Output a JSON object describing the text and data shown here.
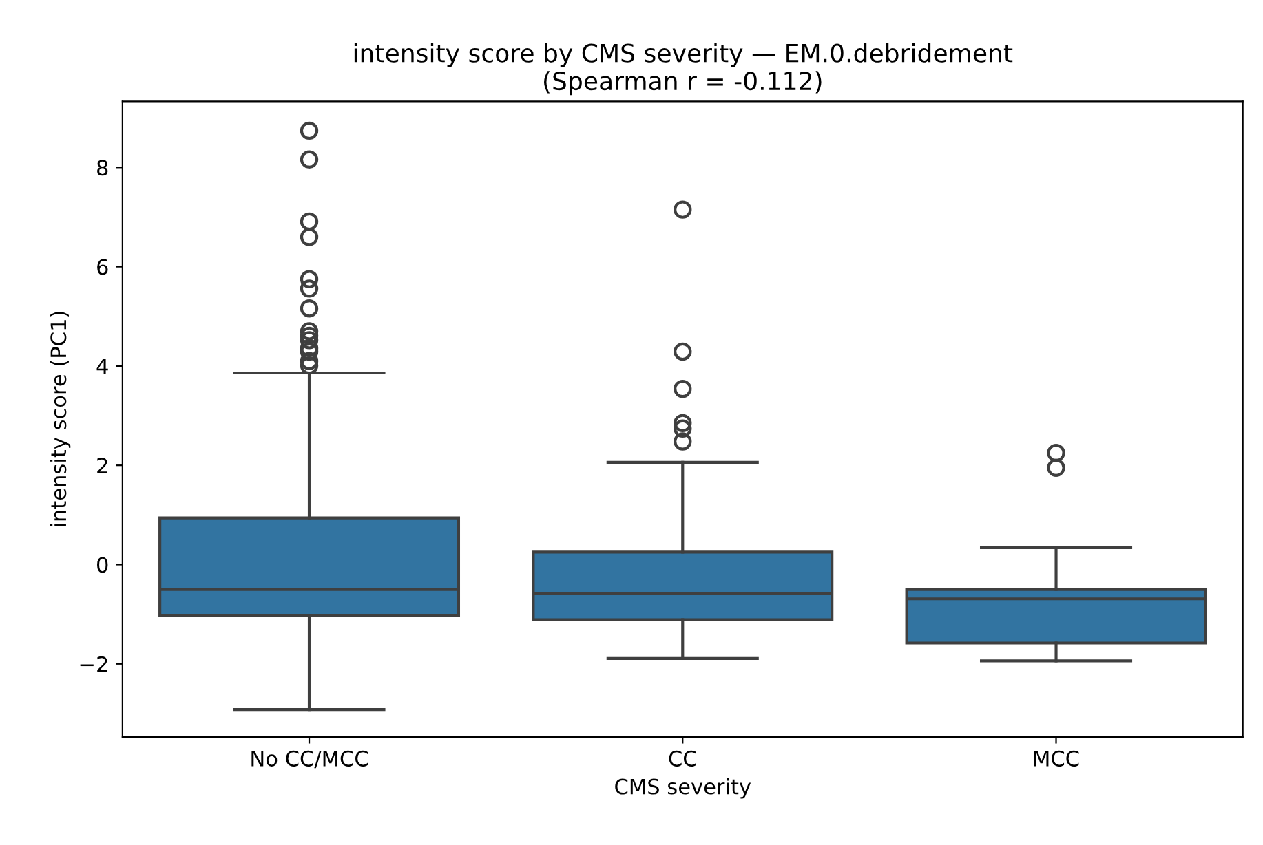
{
  "chart_data": {
    "type": "box",
    "title": "intensity score by CMS severity — EM.0.debridement\n(Spearman r = -0.112)",
    "xlabel": "CMS severity",
    "ylabel": "intensity score (PC1)",
    "categories": [
      "No CC/MCC",
      "CC",
      "MCC"
    ],
    "color": "#3274a1",
    "boxes": [
      {
        "low": -2.92,
        "q1": -1.03,
        "median": -0.5,
        "q3": 0.94,
        "high": 3.86,
        "outliers": [
          8.74,
          8.16,
          6.91,
          6.6,
          5.75,
          5.56,
          5.16,
          4.7,
          4.61,
          4.52,
          4.36,
          4.29,
          4.1,
          4.01
        ]
      },
      {
        "low": -1.89,
        "q1": -1.11,
        "median": -0.58,
        "q3": 0.25,
        "high": 2.06,
        "outliers": [
          7.15,
          4.29,
          3.54,
          2.85,
          2.74,
          2.48
        ]
      },
      {
        "low": -1.94,
        "q1": -1.58,
        "median": -0.69,
        "q3": -0.5,
        "high": 0.34,
        "outliers": [
          2.25,
          1.95
        ]
      }
    ],
    "ylim": [
      -3.47,
      9.33
    ],
    "yticks": [
      {
        "value": -2,
        "label": "−2"
      },
      0,
      2,
      4,
      6,
      8
    ],
    "grid": false
  }
}
